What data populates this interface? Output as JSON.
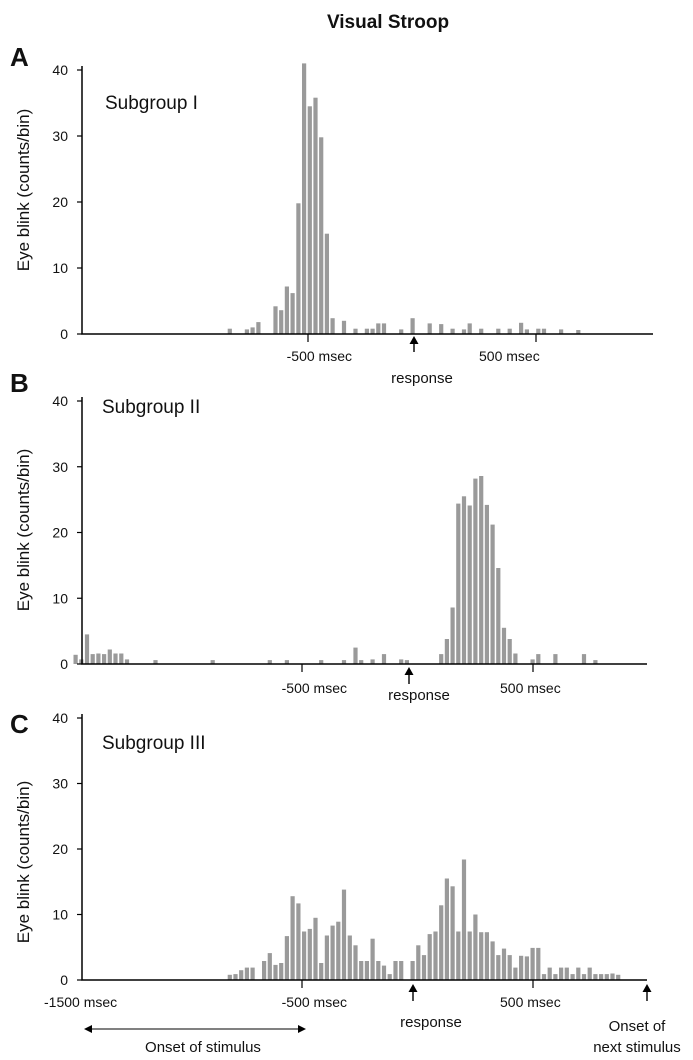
{
  "figure": {
    "title": "Visual Stroop",
    "ylabel": "Eye blink (counts/bin)",
    "response_label": "response",
    "x_ticks": [
      "-1500 msec",
      "-500 msec",
      "500 msec"
    ],
    "onset_stimulus_label": "Onset of stimulus",
    "onset_next_label_1": "Onset of",
    "onset_next_label_2": "next stimulus"
  },
  "chart_data": [
    {
      "type": "bar",
      "panel": "A",
      "subtitle": "Subgroup I",
      "x_unit": "msec relative to response",
      "ylim": [
        0,
        40
      ],
      "yticks": [
        0,
        10,
        20,
        30,
        40
      ],
      "x": [
        -800,
        -725,
        -700,
        -675,
        -600,
        -575,
        -550,
        -525,
        -500,
        -475,
        -450,
        -425,
        -400,
        -375,
        -350,
        -300,
        -250,
        -200,
        -175,
        -150,
        -125,
        -50,
        0,
        75,
        125,
        175,
        225,
        250,
        300,
        375,
        425,
        475,
        500,
        550,
        575,
        650,
        725
      ],
      "values": [
        0.8,
        0.7,
        1,
        1.8,
        4.2,
        3.6,
        7.2,
        6.2,
        19.8,
        41,
        34.5,
        35.8,
        29.8,
        15.2,
        2.4,
        2,
        0.8,
        0.8,
        0.8,
        1.6,
        1.6,
        0.7,
        2.4,
        1.6,
        1.5,
        0.8,
        0.7,
        1.6,
        0.8,
        0.8,
        0.8,
        1.7,
        0.7,
        0.8,
        0.8,
        0.7,
        0.6
      ]
    },
    {
      "type": "bar",
      "panel": "B",
      "subtitle": "Subgroup II",
      "x_unit": "msec relative to response",
      "ylim": [
        0,
        40
      ],
      "yticks": [
        0,
        10,
        20,
        30,
        40
      ],
      "x": [
        -1475,
        -1450,
        -1425,
        -1400,
        -1375,
        -1350,
        -1325,
        -1300,
        -1275,
        -1250,
        -1125,
        -875,
        -625,
        -550,
        -400,
        -300,
        -250,
        -225,
        -175,
        -125,
        -50,
        -25,
        125,
        150,
        175,
        200,
        225,
        250,
        275,
        300,
        325,
        350,
        375,
        400,
        425,
        450,
        525,
        550,
        625,
        750,
        800
      ],
      "values": [
        1.4,
        0.7,
        4.5,
        1.5,
        1.6,
        1.5,
        2.2,
        1.6,
        1.6,
        0.7,
        0.6,
        0.6,
        0.6,
        0.6,
        0.6,
        0.6,
        2.5,
        0.6,
        0.7,
        1.5,
        0.7,
        0.6,
        1.5,
        3.8,
        8.6,
        24.4,
        25.5,
        24.1,
        28.2,
        28.6,
        24.2,
        21.2,
        14.6,
        5.5,
        3.8,
        1.6,
        0.7,
        1.5,
        1.5,
        1.5,
        0.6
      ]
    },
    {
      "type": "bar",
      "panel": "C",
      "subtitle": "Subgroup III",
      "x_unit": "msec relative to response",
      "ylim": [
        0,
        40
      ],
      "yticks": [
        0,
        10,
        20,
        30,
        40
      ],
      "x": [
        -800,
        -775,
        -750,
        -725,
        -700,
        -650,
        -625,
        -600,
        -575,
        -550,
        -525,
        -500,
        -475,
        -450,
        -425,
        -400,
        -375,
        -350,
        -325,
        -300,
        -275,
        -250,
        -225,
        -200,
        -175,
        -150,
        -125,
        -100,
        -75,
        -50,
        0,
        25,
        50,
        75,
        100,
        125,
        150,
        175,
        200,
        225,
        250,
        275,
        300,
        325,
        350,
        375,
        400,
        425,
        450,
        475,
        500,
        525,
        550,
        575,
        600,
        625,
        650,
        675,
        700,
        725,
        750,
        775,
        800,
        825,
        850,
        875,
        900
      ],
      "values": [
        0.8,
        0.9,
        1.5,
        1.9,
        1.9,
        2.9,
        4.1,
        2.3,
        2.6,
        6.7,
        12.8,
        11.7,
        7.4,
        7.8,
        9.5,
        2.6,
        6.8,
        8.3,
        8.9,
        13.8,
        6.8,
        5.3,
        2.9,
        2.9,
        6.3,
        2.9,
        2.2,
        0.9,
        2.9,
        2.9,
        2.9,
        5.3,
        3.8,
        7.0,
        7.4,
        11.4,
        15.5,
        14.3,
        7.4,
        18.4,
        7.4,
        10.0,
        7.3,
        7.3,
        5.9,
        3.8,
        4.8,
        3.8,
        1.9,
        3.7,
        3.6,
        4.9,
        4.9,
        0.9,
        1.9,
        0.9,
        1.9,
        1.9,
        0.9,
        1.9,
        0.9,
        1.9,
        0.9,
        0.9,
        0.9,
        1.0,
        0.8
      ]
    }
  ]
}
